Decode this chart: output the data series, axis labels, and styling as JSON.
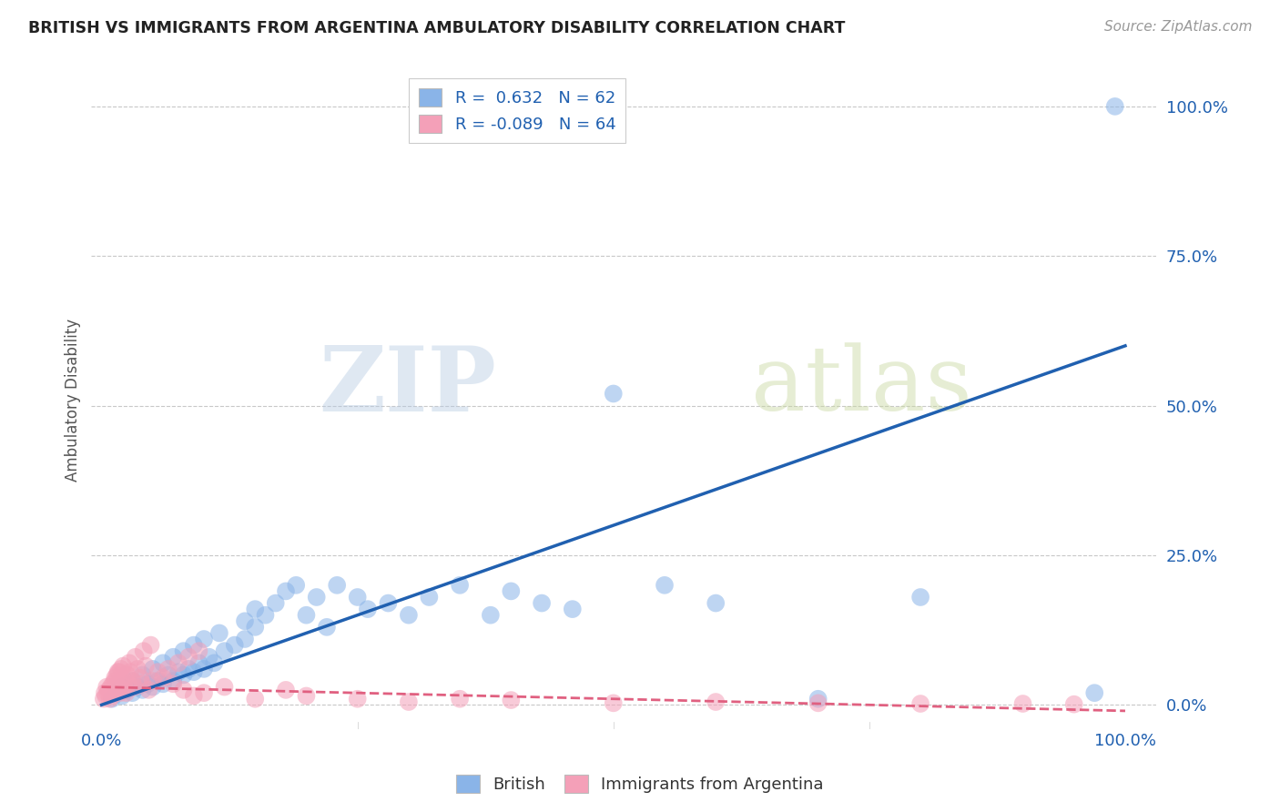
{
  "title": "BRITISH VS IMMIGRANTS FROM ARGENTINA AMBULATORY DISABILITY CORRELATION CHART",
  "source": "Source: ZipAtlas.com",
  "ylabel": "Ambulatory Disability",
  "blue_color": "#8ab4e8",
  "pink_color": "#f4a0b8",
  "blue_line_color": "#2060b0",
  "pink_line_color": "#e06080",
  "watermark_zip": "ZIP",
  "watermark_atlas": "atlas",
  "blue_scatter_x": [
    0.01,
    0.015,
    0.02,
    0.02,
    0.025,
    0.03,
    0.03,
    0.035,
    0.04,
    0.04,
    0.045,
    0.05,
    0.05,
    0.055,
    0.06,
    0.06,
    0.065,
    0.07,
    0.07,
    0.075,
    0.08,
    0.08,
    0.085,
    0.09,
    0.09,
    0.095,
    0.1,
    0.1,
    0.105,
    0.11,
    0.115,
    0.12,
    0.13,
    0.14,
    0.14,
    0.15,
    0.15,
    0.16,
    0.17,
    0.18,
    0.19,
    0.2,
    0.21,
    0.22,
    0.23,
    0.25,
    0.26,
    0.28,
    0.3,
    0.32,
    0.35,
    0.38,
    0.4,
    0.43,
    0.46,
    0.5,
    0.55,
    0.6,
    0.7,
    0.8,
    0.97,
    0.99
  ],
  "blue_scatter_y": [
    0.01,
    0.02,
    0.015,
    0.03,
    0.025,
    0.02,
    0.04,
    0.03,
    0.025,
    0.05,
    0.035,
    0.03,
    0.06,
    0.04,
    0.035,
    0.07,
    0.05,
    0.04,
    0.08,
    0.055,
    0.05,
    0.09,
    0.06,
    0.055,
    0.1,
    0.07,
    0.06,
    0.11,
    0.08,
    0.07,
    0.12,
    0.09,
    0.1,
    0.11,
    0.14,
    0.13,
    0.16,
    0.15,
    0.17,
    0.19,
    0.2,
    0.15,
    0.18,
    0.13,
    0.2,
    0.18,
    0.16,
    0.17,
    0.15,
    0.18,
    0.2,
    0.15,
    0.19,
    0.17,
    0.16,
    0.52,
    0.2,
    0.17,
    0.01,
    0.18,
    0.02,
    1.0
  ],
  "pink_scatter_x": [
    0.002,
    0.004,
    0.006,
    0.007,
    0.008,
    0.009,
    0.01,
    0.011,
    0.012,
    0.013,
    0.014,
    0.015,
    0.016,
    0.017,
    0.018,
    0.019,
    0.02,
    0.021,
    0.022,
    0.023,
    0.024,
    0.025,
    0.026,
    0.028,
    0.03,
    0.032,
    0.035,
    0.038,
    0.04,
    0.043,
    0.046,
    0.05,
    0.055,
    0.06,
    0.07,
    0.08,
    0.09,
    0.1,
    0.12,
    0.15,
    0.18,
    0.2,
    0.25,
    0.3,
    0.35,
    0.4,
    0.5,
    0.6,
    0.7,
    0.8,
    0.9,
    0.95,
    0.003,
    0.005,
    0.027,
    0.033,
    0.041,
    0.048,
    0.065,
    0.075,
    0.085,
    0.095,
    0.013,
    0.016
  ],
  "pink_scatter_y": [
    0.01,
    0.015,
    0.02,
    0.025,
    0.01,
    0.03,
    0.015,
    0.035,
    0.02,
    0.04,
    0.025,
    0.05,
    0.03,
    0.055,
    0.02,
    0.06,
    0.025,
    0.065,
    0.03,
    0.04,
    0.02,
    0.05,
    0.035,
    0.055,
    0.04,
    0.03,
    0.06,
    0.045,
    0.035,
    0.065,
    0.025,
    0.04,
    0.055,
    0.045,
    0.035,
    0.025,
    0.015,
    0.02,
    0.03,
    0.01,
    0.025,
    0.015,
    0.01,
    0.005,
    0.01,
    0.008,
    0.003,
    0.005,
    0.003,
    0.002,
    0.002,
    0.001,
    0.02,
    0.03,
    0.07,
    0.08,
    0.09,
    0.1,
    0.06,
    0.07,
    0.08,
    0.09,
    0.045,
    0.055
  ],
  "blue_line_x0": 0.0,
  "blue_line_y0": 0.0,
  "blue_line_x1": 1.0,
  "blue_line_y1": 0.6,
  "pink_line_x0": 0.0,
  "pink_line_y0": 0.03,
  "pink_line_x1": 1.0,
  "pink_line_y1": -0.01,
  "ytick_positions": [
    0.0,
    0.25,
    0.5,
    0.75,
    1.0
  ],
  "ytick_labels": [
    "0.0%",
    "25.0%",
    "50.0%",
    "75.0%",
    "100.0%"
  ],
  "xtick_positions": [
    0.0,
    1.0
  ],
  "xtick_labels": [
    "0.0%",
    "100.0%"
  ]
}
